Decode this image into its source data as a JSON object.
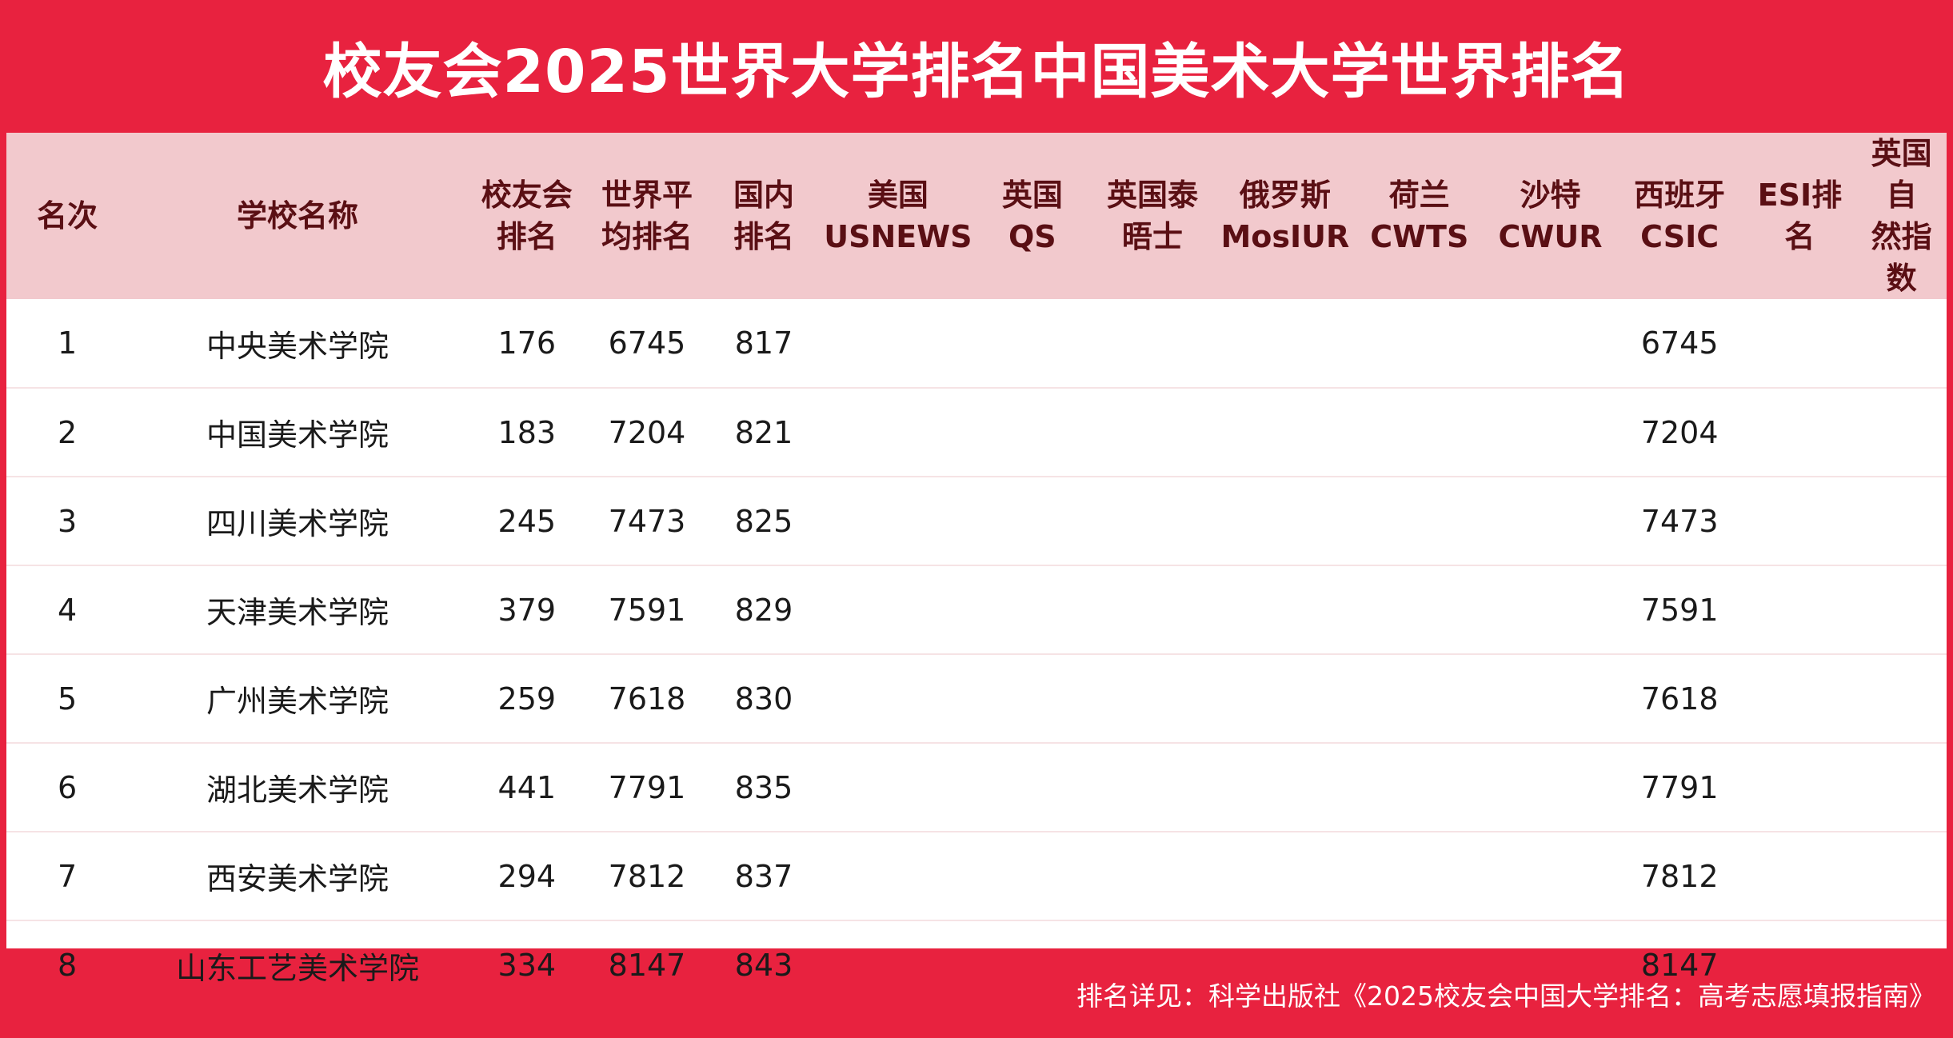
{
  "title": "校友会2025世界大学排名中国美术大学世界排名",
  "columns": [
    [
      "名次"
    ],
    [
      "学校名称"
    ],
    [
      "校友会",
      "排名"
    ],
    [
      "世界平",
      "均排名"
    ],
    [
      "国内",
      "排名"
    ],
    [
      "美国",
      "USNEWS"
    ],
    [
      "英国",
      "QS"
    ],
    [
      "英国泰",
      "晤士"
    ],
    [
      "俄罗斯",
      "MosIUR"
    ],
    [
      "荷兰",
      "CWTS"
    ],
    [
      "沙特",
      "CWUR"
    ],
    [
      "西班牙",
      "CSIC"
    ],
    [
      "ESI排",
      "名"
    ],
    [
      "英国自",
      "然指数"
    ]
  ],
  "rows": [
    [
      "1",
      "中央美术学院",
      "176",
      "6745",
      "817",
      "",
      "",
      "",
      "",
      "",
      "",
      "6745",
      "",
      ""
    ],
    [
      "2",
      "中国美术学院",
      "183",
      "7204",
      "821",
      "",
      "",
      "",
      "",
      "",
      "",
      "7204",
      "",
      ""
    ],
    [
      "3",
      "四川美术学院",
      "245",
      "7473",
      "825",
      "",
      "",
      "",
      "",
      "",
      "",
      "7473",
      "",
      ""
    ],
    [
      "4",
      "天津美术学院",
      "379",
      "7591",
      "829",
      "",
      "",
      "",
      "",
      "",
      "",
      "7591",
      "",
      ""
    ],
    [
      "5",
      "广州美术学院",
      "259",
      "7618",
      "830",
      "",
      "",
      "",
      "",
      "",
      "",
      "7618",
      "",
      ""
    ],
    [
      "6",
      "湖北美术学院",
      "441",
      "7791",
      "835",
      "",
      "",
      "",
      "",
      "",
      "",
      "7791",
      "",
      ""
    ],
    [
      "7",
      "西安美术学院",
      "294",
      "7812",
      "837",
      "",
      "",
      "",
      "",
      "",
      "",
      "7812",
      "",
      ""
    ],
    [
      "8",
      "山东工艺美术学院",
      "334",
      "8147",
      "843",
      "",
      "",
      "",
      "",
      "",
      "",
      "8147",
      "",
      ""
    ]
  ],
  "footer": "排名详见：科学出版社《2025校友会中国大学排名：高考志愿填报指南》",
  "colors": {
    "brand_red": "#e8223f",
    "header_bg": "#f2c9cd",
    "header_text": "#5a0f14"
  }
}
